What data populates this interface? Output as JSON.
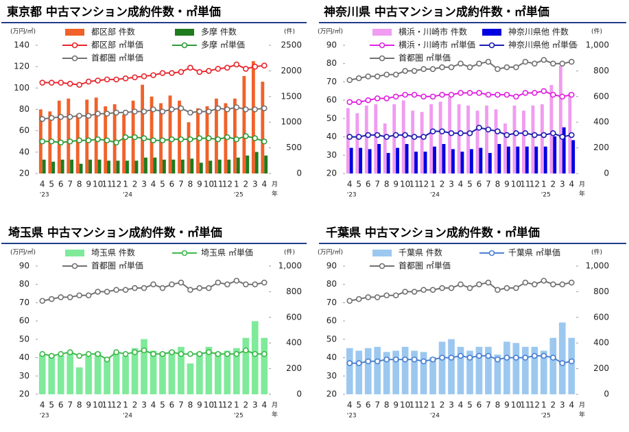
{
  "chart_data": [
    {
      "type": "bar",
      "title": "東京都 中古マンション成約件数・㎡単価",
      "y_label": "(万円/㎡)",
      "y2_label": "(件)",
      "x_label_month": "月",
      "x_label_year": "年",
      "categories": [
        "4",
        "5",
        "6",
        "7",
        "8",
        "9",
        "10",
        "11",
        "12",
        "1",
        "2",
        "3",
        "4",
        "5",
        "6",
        "7",
        "8",
        "9",
        "10",
        "11",
        "12",
        "1",
        "2",
        "3",
        "4"
      ],
      "year_labels": [
        "'23",
        null,
        null,
        null,
        null,
        null,
        null,
        null,
        null,
        "'24",
        null,
        null,
        null,
        null,
        null,
        null,
        null,
        null,
        null,
        null,
        null,
        "'25",
        null,
        null,
        null
      ],
      "ylim": [
        20,
        140
      ],
      "yticks": [
        20,
        40,
        60,
        80,
        100,
        120,
        140
      ],
      "y2lim": [
        0,
        2500
      ],
      "y2ticks": [
        0,
        500,
        1000,
        1500,
        2000,
        2500
      ],
      "series": [
        {
          "name": "都区部 件数",
          "type": "bar",
          "axis": "y2",
          "color": "#f0622a",
          "values": [
            1250,
            1210,
            1420,
            1460,
            1150,
            1440,
            1480,
            1310,
            1350,
            1150,
            1420,
            1730,
            1500,
            1370,
            1520,
            1420,
            1000,
            1270,
            1310,
            1460,
            1370,
            1460,
            1900,
            2190,
            1790
          ]
        },
        {
          "name": "多摩 件数",
          "type": "bar",
          "axis": "y2",
          "color": "#1e7b1e",
          "values": [
            270,
            230,
            270,
            270,
            190,
            270,
            270,
            250,
            250,
            250,
            250,
            310,
            310,
            270,
            270,
            270,
            290,
            210,
            250,
            270,
            270,
            310,
            350,
            420,
            350
          ]
        },
        {
          "name": "都区部 ㎡単価",
          "type": "line",
          "color": "#e8242a",
          "values": [
            105,
            105,
            105,
            104,
            103,
            106,
            107,
            108,
            108,
            109,
            110,
            111,
            112,
            114,
            114,
            115,
            119,
            115,
            116,
            118,
            119,
            122,
            118,
            120,
            121
          ]
        },
        {
          "name": "多摩 ㎡単価",
          "type": "line",
          "color": "#2e9a3a",
          "values": [
            50,
            50,
            49,
            50,
            51,
            51,
            52,
            51,
            49,
            54,
            54,
            53,
            51,
            51,
            52,
            52,
            52,
            53,
            53,
            52,
            54,
            52,
            55,
            53,
            50
          ]
        },
        {
          "name": "首都圏 ㎡単価",
          "type": "line",
          "color": "#707070",
          "values": [
            71,
            72,
            73,
            73,
            74,
            74,
            76,
            76,
            77,
            77,
            78,
            78,
            80,
            78,
            80,
            81,
            77,
            78,
            78,
            81,
            80,
            82,
            80,
            80,
            81
          ]
        }
      ]
    },
    {
      "type": "bar",
      "title": "神奈川県 中古マンション成約件数・㎡単価",
      "y_label": "(万円/㎡)",
      "y2_label": "(件)",
      "x_label_month": "月",
      "x_label_year": "年",
      "categories": [
        "4",
        "5",
        "6",
        "7",
        "8",
        "9",
        "10",
        "11",
        "12",
        "1",
        "2",
        "3",
        "4",
        "5",
        "6",
        "7",
        "8",
        "9",
        "10",
        "11",
        "12",
        "1",
        "2",
        "3",
        "4"
      ],
      "year_labels": [
        "'23",
        null,
        null,
        null,
        null,
        null,
        null,
        null,
        null,
        "'24",
        null,
        null,
        null,
        null,
        null,
        null,
        null,
        null,
        null,
        null,
        null,
        "'25",
        null,
        null,
        null
      ],
      "ylim": [
        20,
        90
      ],
      "yticks": [
        20,
        30,
        40,
        50,
        60,
        70,
        80,
        90
      ],
      "y2lim": [
        0,
        1000
      ],
      "y2ticks": [
        0,
        200,
        400,
        600,
        800,
        {
          "value": 1000,
          "label": "1,000"
        }
      ],
      "series": [
        {
          "name": "横浜・川崎市 件数",
          "type": "bar",
          "axis": "y2",
          "color": "#f09cf0",
          "values": [
            510,
            470,
            530,
            540,
            390,
            540,
            570,
            490,
            480,
            540,
            560,
            600,
            540,
            530,
            490,
            530,
            500,
            390,
            530,
            490,
            530,
            540,
            690,
            840,
            630
          ]
        },
        {
          "name": "神奈川県他 件数",
          "type": "bar",
          "axis": "y2",
          "color": "#0000e0",
          "values": [
            200,
            200,
            190,
            230,
            160,
            200,
            230,
            170,
            170,
            210,
            230,
            190,
            170,
            190,
            200,
            160,
            230,
            210,
            210,
            210,
            210,
            210,
            290,
            360,
            260
          ]
        },
        {
          "name": "横浜・川崎市 ㎡単価",
          "type": "line",
          "color": "#e020e0",
          "values": [
            59,
            59,
            60,
            61,
            61,
            62,
            63,
            63,
            62,
            62,
            63,
            63,
            64,
            64,
            64,
            63,
            63,
            63,
            62,
            64,
            64,
            65,
            63,
            62,
            63
          ]
        },
        {
          "name": "神奈川県他 ㎡単価",
          "type": "line",
          "color": "#1a1ab0",
          "values": [
            40,
            40,
            41,
            41,
            40,
            41,
            41,
            40,
            40,
            43,
            43,
            42,
            42,
            42,
            45,
            44,
            43,
            41,
            42,
            42,
            41,
            41,
            42,
            40,
            41
          ]
        },
        {
          "name": "首都圏 ㎡単価",
          "type": "line",
          "color": "#707070",
          "values": [
            71,
            72,
            73,
            73,
            74,
            74,
            76,
            76,
            77,
            77,
            78,
            78,
            80,
            78,
            80,
            81,
            77,
            78,
            78,
            81,
            80,
            82,
            80,
            80,
            81
          ]
        }
      ]
    },
    {
      "type": "bar",
      "title": "埼玉県 中古マンション成約件数・㎡単価",
      "y_label": "(万円/㎡)",
      "y2_label": "(件)",
      "x_label_month": "月",
      "x_label_year": "年",
      "categories": [
        "4",
        "5",
        "6",
        "7",
        "8",
        "9",
        "10",
        "11",
        "12",
        "1",
        "2",
        "3",
        "4",
        "5",
        "6",
        "7",
        "8",
        "9",
        "10",
        "11",
        "12",
        "1",
        "2",
        "3",
        "4"
      ],
      "year_labels": [
        "'23",
        null,
        null,
        null,
        null,
        null,
        null,
        null,
        null,
        "'24",
        null,
        null,
        null,
        null,
        null,
        null,
        null,
        null,
        null,
        null,
        null,
        "'25",
        null,
        null,
        null
      ],
      "ylim": [
        20,
        90
      ],
      "yticks": [
        20,
        30,
        40,
        50,
        60,
        70,
        80,
        90
      ],
      "y2lim": [
        0,
        1000
      ],
      "y2ticks": [
        0,
        200,
        400,
        600,
        800,
        {
          "value": 1000,
          "label": "1,000"
        }
      ],
      "series": [
        {
          "name": "埼玉県 件数",
          "type": "bar",
          "axis": "y2",
          "color": "#7fea9a",
          "values": [
            310,
            300,
            300,
            330,
            210,
            300,
            330,
            290,
            330,
            300,
            360,
            430,
            340,
            330,
            340,
            370,
            240,
            330,
            370,
            330,
            340,
            360,
            440,
            570,
            440
          ]
        },
        {
          "name": "埼玉県 ㎡単価",
          "type": "line",
          "color": "#3cb84a",
          "values": [
            42,
            41,
            42,
            43,
            41,
            42,
            42,
            39,
            43,
            42,
            43,
            44,
            42,
            42,
            43,
            42,
            42,
            42,
            43,
            42,
            42,
            42,
            44,
            42,
            42
          ]
        },
        {
          "name": "首都圏 ㎡単価",
          "type": "line",
          "color": "#707070",
          "values": [
            71,
            72,
            73,
            73,
            74,
            74,
            76,
            76,
            77,
            77,
            78,
            78,
            80,
            78,
            80,
            81,
            77,
            78,
            78,
            81,
            80,
            82,
            80,
            80,
            81
          ]
        }
      ]
    },
    {
      "type": "bar",
      "title": "千葉県 中古マンション成約件数・㎡単価",
      "y_label": "(万円/㎡)",
      "y2_label": "(件)",
      "x_label_month": "月",
      "x_label_year": "年",
      "categories": [
        "4",
        "5",
        "6",
        "7",
        "8",
        "9",
        "10",
        "11",
        "12",
        "1",
        "2",
        "3",
        "4",
        "5",
        "6",
        "7",
        "8",
        "9",
        "10",
        "11",
        "12",
        "1",
        "2",
        "3",
        "4"
      ],
      "year_labels": [
        "'23",
        null,
        null,
        null,
        null,
        null,
        null,
        null,
        null,
        "'24",
        null,
        null,
        null,
        null,
        null,
        null,
        null,
        null,
        null,
        null,
        null,
        "'25",
        null,
        null,
        null
      ],
      "ylim": [
        20,
        90
      ],
      "yticks": [
        20,
        30,
        40,
        50,
        60,
        70,
        80,
        90
      ],
      "y2lim": [
        0,
        1000
      ],
      "y2ticks": [
        0,
        200,
        400,
        600,
        800,
        {
          "value": 1000,
          "label": "1,000"
        }
      ],
      "series": [
        {
          "name": "千葉県 件数",
          "type": "bar",
          "axis": "y2",
          "color": "#9cc8f0",
          "values": [
            360,
            340,
            360,
            370,
            330,
            340,
            370,
            340,
            330,
            290,
            410,
            430,
            370,
            340,
            370,
            370,
            310,
            410,
            400,
            370,
            370,
            340,
            440,
            560,
            440
          ]
        },
        {
          "name": "千葉県 ㎡単価",
          "type": "line",
          "color": "#4a7fd0",
          "values": [
            37,
            37,
            38,
            38,
            39,
            39,
            39,
            39,
            38,
            39,
            40,
            40,
            41,
            40,
            41,
            41,
            39,
            40,
            40,
            40,
            41,
            41,
            40,
            37,
            38
          ]
        },
        {
          "name": "首都圏 ㎡単価",
          "type": "line",
          "color": "#707070",
          "values": [
            71,
            72,
            73,
            73,
            74,
            74,
            76,
            76,
            77,
            77,
            78,
            78,
            80,
            78,
            80,
            81,
            77,
            78,
            78,
            81,
            80,
            82,
            80,
            80,
            81
          ]
        }
      ]
    }
  ]
}
